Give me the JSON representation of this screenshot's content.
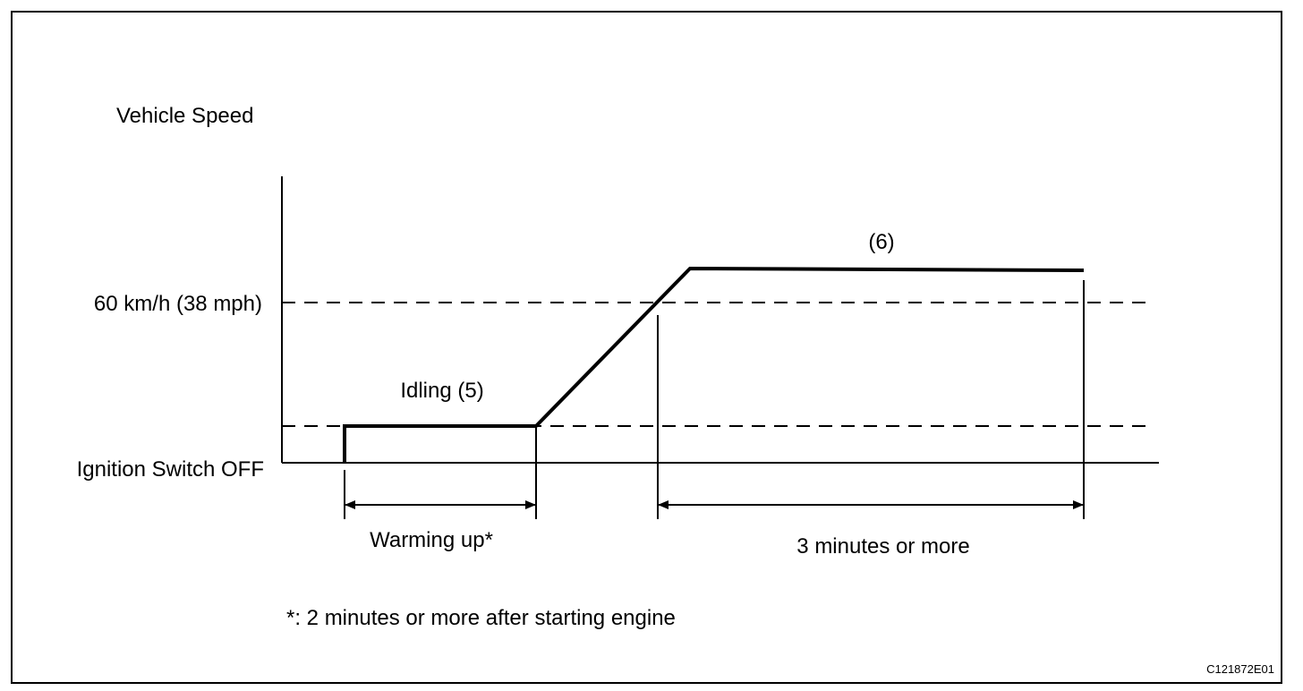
{
  "labels": {
    "y_axis_title": "Vehicle Speed",
    "speed_level": "60 km/h (38 mph)",
    "baseline": "Ignition Switch OFF",
    "idling_phase": "Idling (5)",
    "drive_phase": "(6)",
    "warmup_span": "Warming up*",
    "drive_span": "3 minutes or more",
    "footnote": "*: 2 minutes or more after starting engine",
    "figure_code": "C121872E01"
  },
  "colors": {
    "line": "#000000",
    "background": "#ffffff"
  }
}
